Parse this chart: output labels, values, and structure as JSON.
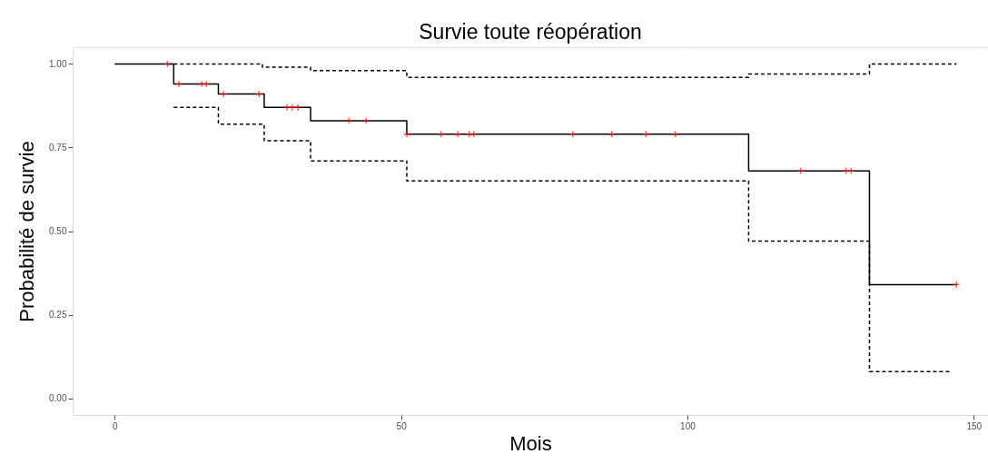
{
  "chart_data": {
    "type": "step",
    "title": "Survie toute réopération",
    "xlabel": "Mois",
    "ylabel": "Probabilité de survie",
    "xlim": [
      -7.35,
      152.5
    ],
    "xticks": [
      0,
      50,
      100,
      150
    ],
    "ylim": [
      -0.05,
      1.05
    ],
    "yticks": [
      {
        "value": 0,
        "label": "0.00"
      },
      {
        "value": 0.25,
        "label": "0.25"
      },
      {
        "value": 0.5,
        "label": "0.50"
      },
      {
        "value": 0.75,
        "label": "0.75"
      },
      {
        "value": 1,
        "label": "1.00"
      }
    ],
    "grid": true,
    "series": [
      {
        "color": "#000000",
        "line_style": "solid",
        "x": [
          0,
          10.3,
          18.1,
          26.1,
          34.2,
          51.0,
          110.7,
          131.8,
          147
        ],
        "values": [
          1.0,
          0.94,
          0.91,
          0.87,
          0.83,
          0.79,
          0.68,
          0.34,
          0.34
        ]
      },
      {
        "color": "#000000",
        "line_style": "dashed",
        "x": [
          9.2,
          25.8,
          34.2,
          51.0,
          110.7,
          131.8,
          147
        ],
        "values": [
          1.0,
          0.99,
          0.98,
          0.96,
          0.97,
          1.0,
          1.0
        ]
      },
      {
        "color": "#000000",
        "line_style": "dashed",
        "x": [
          10.3,
          18.1,
          26.1,
          34.2,
          51.0,
          110.7,
          131.8,
          146.2
        ],
        "values": [
          0.87,
          0.82,
          0.77,
          0.71,
          0.65,
          0.47,
          0.08,
          0.08
        ]
      },
      {
        "type": "scatter",
        "color": "#ff0000",
        "marker": "cross",
        "x": [
          9.2,
          11.2,
          15.2,
          16.0,
          19.0,
          25.2,
          30.1,
          31.0,
          32.0,
          40.9,
          43.9,
          51.0,
          57.0,
          59.9,
          61.9,
          62.7,
          80.0,
          86.8,
          92.8,
          97.9,
          119.8,
          127.7,
          128.6,
          147
        ],
        "values": [
          1.0,
          0.94,
          0.94,
          0.94,
          0.91,
          0.91,
          0.87,
          0.87,
          0.87,
          0.83,
          0.83,
          0.79,
          0.79,
          0.79,
          0.79,
          0.79,
          0.79,
          0.79,
          0.79,
          0.79,
          0.68,
          0.68,
          0.68,
          0.34
        ]
      }
    ]
  }
}
